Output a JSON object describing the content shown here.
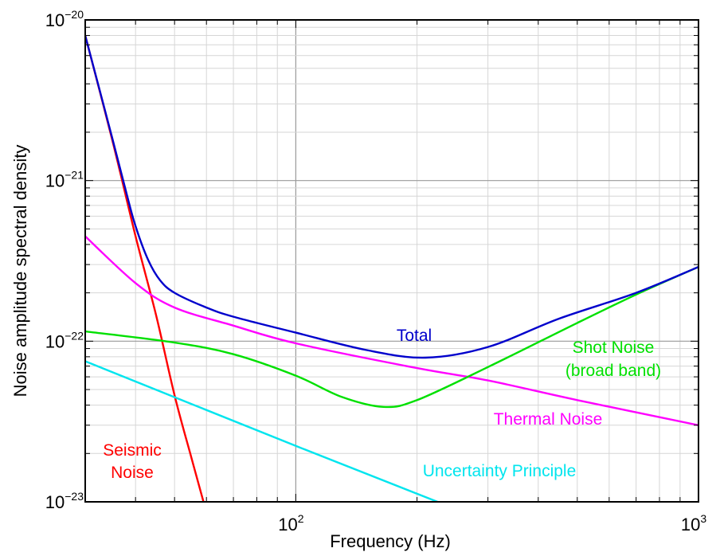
{
  "chart_data": {
    "type": "line",
    "title": "",
    "xlabel": "Frequency (Hz)",
    "ylabel": "Noise amplitude spectral density",
    "x_scale": "log",
    "y_scale": "log",
    "xlim": [
      30,
      1000
    ],
    "ylim": [
      1e-23,
      1e-20
    ],
    "grid": true,
    "x_tick_labels": [
      {
        "value": 100,
        "base": "10",
        "exp": "2"
      },
      {
        "value": 1000,
        "base": "10",
        "exp": "3"
      }
    ],
    "y_tick_labels": [
      {
        "value": 1e-20,
        "base": "10",
        "exp": "−20"
      },
      {
        "value": 1e-21,
        "base": "10",
        "exp": "−21"
      },
      {
        "value": 1e-22,
        "base": "10",
        "exp": "−22"
      },
      {
        "value": 1e-23,
        "base": "10",
        "exp": "−23"
      }
    ],
    "series": [
      {
        "name": "Seismic Noise",
        "color": "#ff0000",
        "points": [
          [
            30,
            8e-21
          ],
          [
            35,
            1.8e-21
          ],
          [
            40,
            4.5e-22
          ],
          [
            45,
            1.45e-22
          ],
          [
            50,
            4.6e-23
          ],
          [
            55,
            1.9e-23
          ],
          [
            59,
            1e-23
          ]
        ]
      },
      {
        "name": "Thermal Noise",
        "color": "#ff00ff",
        "points": [
          [
            30,
            4.5e-22
          ],
          [
            40,
            2.3e-22
          ],
          [
            50,
            1.62e-22
          ],
          [
            70,
            1.25e-22
          ],
          [
            100,
            9.7e-23
          ],
          [
            200,
            6.8e-23
          ],
          [
            300,
            5.7e-23
          ],
          [
            500,
            4.3e-23
          ],
          [
            1000,
            3e-23
          ]
        ]
      },
      {
        "name": "Shot Noise (broad band)",
        "color": "#00e000",
        "points": [
          [
            30,
            1.15e-22
          ],
          [
            50,
            9.8e-23
          ],
          [
            70,
            8.3e-23
          ],
          [
            100,
            6.1e-23
          ],
          [
            130,
            4.5e-23
          ],
          [
            165,
            3.9e-23
          ],
          [
            200,
            4.3e-23
          ],
          [
            300,
            6.9e-23
          ],
          [
            500,
            1.3e-22
          ],
          [
            700,
            1.95e-22
          ],
          [
            1000,
            2.9e-22
          ]
        ]
      },
      {
        "name": "Uncertainty Principle",
        "color": "#00e5ee",
        "points": [
          [
            30,
            7.5e-23
          ],
          [
            100,
            2.23e-23
          ],
          [
            225,
            1e-23
          ]
        ]
      },
      {
        "name": "Total",
        "color": "#0000cc",
        "points": [
          [
            30,
            8e-21
          ],
          [
            35,
            1.85e-21
          ],
          [
            38,
            8.3e-22
          ],
          [
            40,
            5.2e-22
          ],
          [
            43,
            3.2e-22
          ],
          [
            46,
            2.4e-22
          ],
          [
            50,
            2e-22
          ],
          [
            60,
            1.62e-22
          ],
          [
            70,
            1.42e-22
          ],
          [
            100,
            1.13e-22
          ],
          [
            150,
            8.8e-23
          ],
          [
            210,
            7.9e-23
          ],
          [
            300,
            9.2e-23
          ],
          [
            450,
            1.38e-22
          ],
          [
            700,
            2e-22
          ],
          [
            1000,
            2.9e-22
          ]
        ]
      }
    ],
    "curve_labels": [
      {
        "text": "Total",
        "color": "#0000cc"
      },
      {
        "text": "Shot Noise",
        "color": "#00e000"
      },
      {
        "text": "(broad band)",
        "color": "#00e000"
      },
      {
        "text": "Thermal Noise",
        "color": "#ff00ff"
      },
      {
        "text": "Seismic",
        "color": "#ff0000"
      },
      {
        "text": "Noise",
        "color": "#ff0000"
      },
      {
        "text": "Uncertainty Principle",
        "color": "#00e5ee"
      }
    ]
  }
}
